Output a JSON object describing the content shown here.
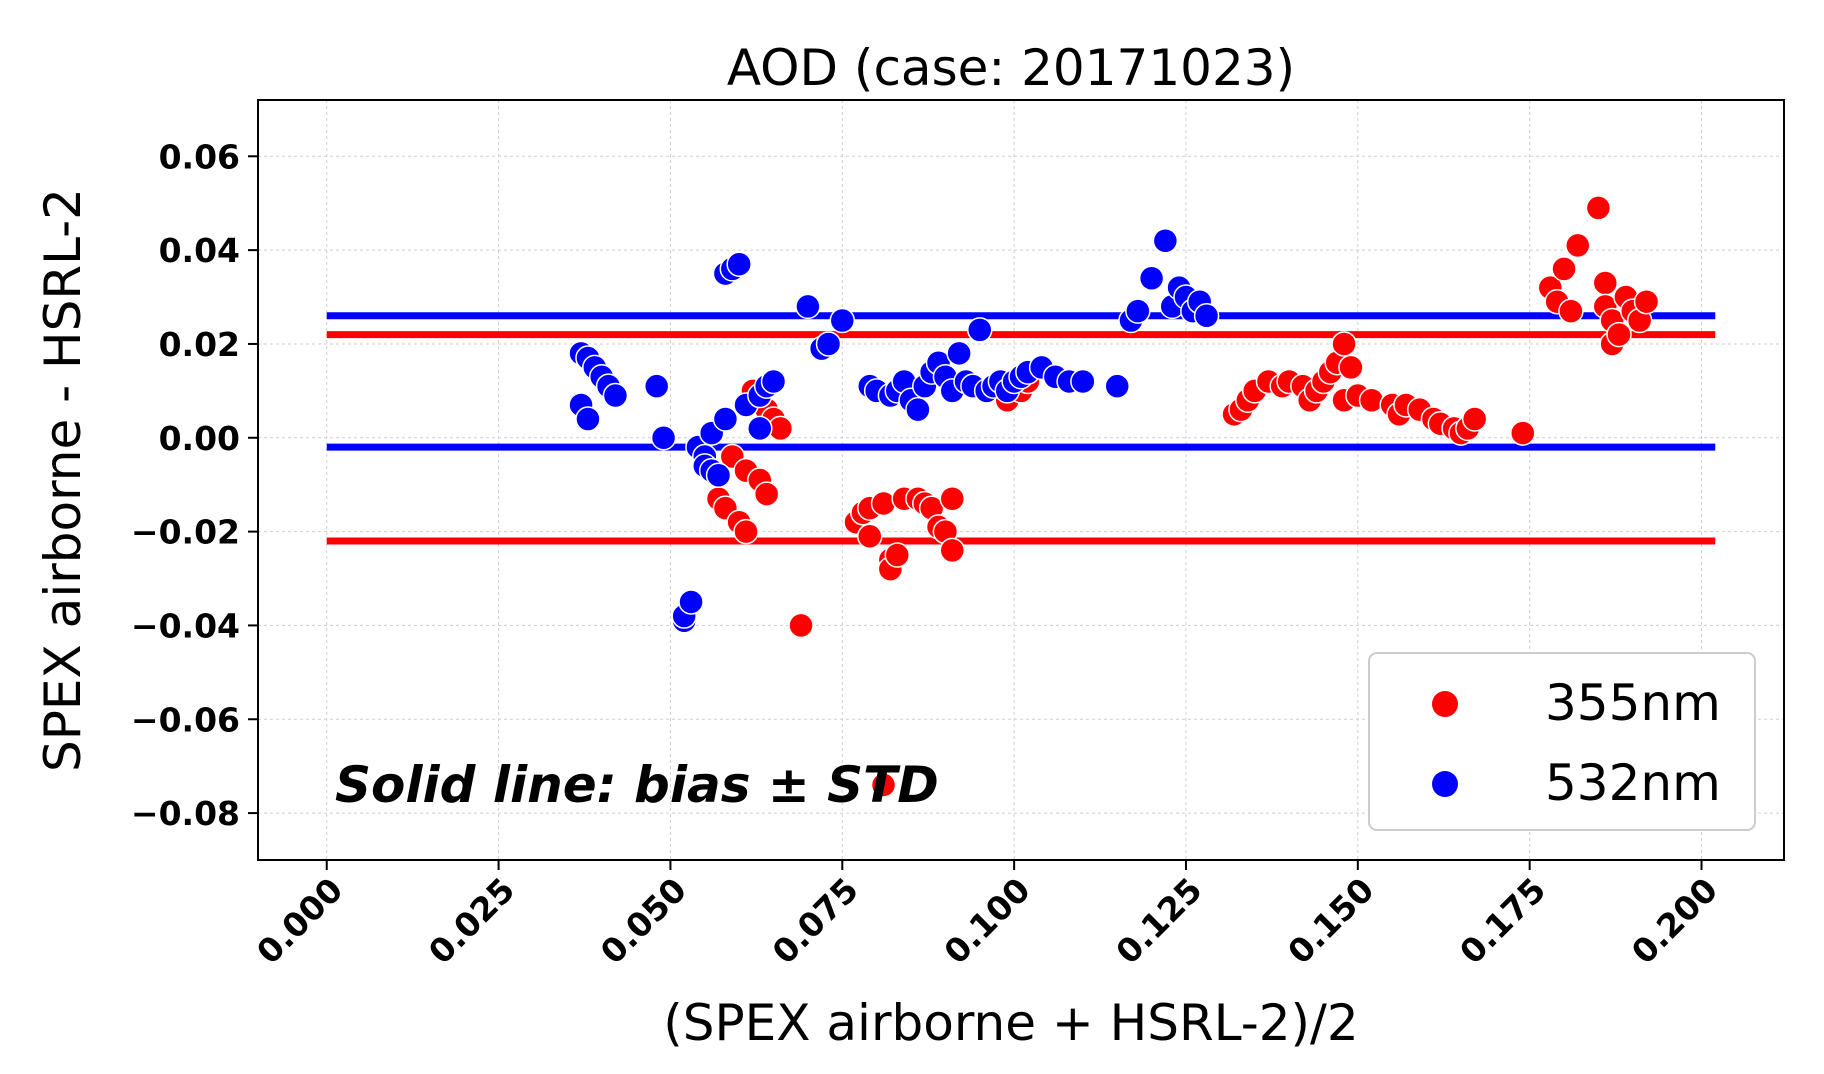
{
  "chart_data": {
    "type": "scatter",
    "title": "AOD (case: 20171023)",
    "xlabel": "(SPEX airborne + HSRL-2)/2",
    "ylabel": "SPEX airborne - HSRL-2",
    "xlim": [
      -0.01,
      0.212
    ],
    "ylim": [
      -0.09,
      0.072
    ],
    "grid": true,
    "xticks": [
      0.0,
      0.025,
      0.05,
      0.075,
      0.1,
      0.125,
      0.15,
      0.175,
      0.2
    ],
    "xtick_labels": [
      "0.000",
      "0.025",
      "0.050",
      "0.075",
      "0.100",
      "0.125",
      "0.150",
      "0.175",
      "0.200"
    ],
    "yticks": [
      0.06,
      0.04,
      0.02,
      0.0,
      -0.02,
      -0.04,
      -0.06,
      -0.08
    ],
    "ytick_labels": [
      "0.06",
      "0.04",
      "0.02",
      "0.00",
      "−0.02",
      "−0.04",
      "−0.06",
      "−0.08"
    ],
    "legend_position": "bottom-right",
    "annotation": "Solid line: bias ± STD",
    "series": [
      {
        "name": "355nm",
        "color": "#ff0000",
        "hlines": [
          0.022,
          -0.022
        ],
        "points": [
          [
            0.057,
            -0.013
          ],
          [
            0.058,
            -0.015
          ],
          [
            0.059,
            -0.004
          ],
          [
            0.06,
            -0.018
          ],
          [
            0.061,
            -0.02
          ],
          [
            0.061,
            -0.007
          ],
          [
            0.062,
            0.01
          ],
          [
            0.063,
            -0.009
          ],
          [
            0.064,
            -0.012
          ],
          [
            0.064,
            0.006
          ],
          [
            0.065,
            0.004
          ],
          [
            0.066,
            0.002
          ],
          [
            0.069,
            -0.04
          ],
          [
            0.077,
            -0.018
          ],
          [
            0.078,
            -0.016
          ],
          [
            0.079,
            -0.015
          ],
          [
            0.079,
            -0.021
          ],
          [
            0.081,
            -0.074
          ],
          [
            0.081,
            -0.014
          ],
          [
            0.082,
            -0.026
          ],
          [
            0.082,
            -0.028
          ],
          [
            0.083,
            -0.025
          ],
          [
            0.084,
            -0.013
          ],
          [
            0.086,
            -0.013
          ],
          [
            0.087,
            -0.014
          ],
          [
            0.088,
            -0.015
          ],
          [
            0.089,
            -0.019
          ],
          [
            0.09,
            -0.02
          ],
          [
            0.091,
            -0.013
          ],
          [
            0.091,
            -0.024
          ],
          [
            0.099,
            0.008
          ],
          [
            0.101,
            0.01
          ],
          [
            0.102,
            0.012
          ],
          [
            0.132,
            0.005
          ],
          [
            0.133,
            0.006
          ],
          [
            0.134,
            0.008
          ],
          [
            0.135,
            0.01
          ],
          [
            0.137,
            0.012
          ],
          [
            0.139,
            0.011
          ],
          [
            0.14,
            0.012
          ],
          [
            0.142,
            0.011
          ],
          [
            0.143,
            0.008
          ],
          [
            0.144,
            0.01
          ],
          [
            0.145,
            0.012
          ],
          [
            0.146,
            0.014
          ],
          [
            0.147,
            0.016
          ],
          [
            0.148,
            0.02
          ],
          [
            0.148,
            0.008
          ],
          [
            0.149,
            0.015
          ],
          [
            0.15,
            0.009
          ],
          [
            0.152,
            0.008
          ],
          [
            0.155,
            0.007
          ],
          [
            0.156,
            0.005
          ],
          [
            0.157,
            0.007
          ],
          [
            0.159,
            0.006
          ],
          [
            0.161,
            0.004
          ],
          [
            0.162,
            0.003
          ],
          [
            0.164,
            0.002
          ],
          [
            0.165,
            0.001
          ],
          [
            0.166,
            0.002
          ],
          [
            0.167,
            0.004
          ],
          [
            0.174,
            0.001
          ],
          [
            0.178,
            0.032
          ],
          [
            0.179,
            0.029
          ],
          [
            0.18,
            0.036
          ],
          [
            0.181,
            0.027
          ],
          [
            0.182,
            0.041
          ],
          [
            0.185,
            0.049
          ],
          [
            0.186,
            0.033
          ],
          [
            0.186,
            0.028
          ],
          [
            0.187,
            0.025
          ],
          [
            0.187,
            0.02
          ],
          [
            0.188,
            0.022
          ],
          [
            0.189,
            0.03
          ],
          [
            0.19,
            0.027
          ],
          [
            0.191,
            0.025
          ],
          [
            0.192,
            0.029
          ]
        ]
      },
      {
        "name": "532nm",
        "color": "#0000ff",
        "hlines": [
          0.026,
          -0.002
        ],
        "points": [
          [
            0.037,
            0.007
          ],
          [
            0.037,
            0.018
          ],
          [
            0.038,
            0.017
          ],
          [
            0.038,
            0.004
          ],
          [
            0.039,
            0.015
          ],
          [
            0.04,
            0.013
          ],
          [
            0.041,
            0.011
          ],
          [
            0.042,
            0.009
          ],
          [
            0.048,
            0.011
          ],
          [
            0.049,
            0.0
          ],
          [
            0.052,
            -0.039
          ],
          [
            0.052,
            -0.038
          ],
          [
            0.053,
            -0.035
          ],
          [
            0.054,
            -0.002
          ],
          [
            0.055,
            -0.004
          ],
          [
            0.055,
            -0.006
          ],
          [
            0.056,
            0.001
          ],
          [
            0.056,
            -0.007
          ],
          [
            0.057,
            -0.008
          ],
          [
            0.058,
            0.004
          ],
          [
            0.058,
            0.035
          ],
          [
            0.059,
            0.036
          ],
          [
            0.06,
            0.037
          ],
          [
            0.061,
            0.007
          ],
          [
            0.063,
            0.002
          ],
          [
            0.063,
            0.009
          ],
          [
            0.064,
            0.011
          ],
          [
            0.065,
            0.012
          ],
          [
            0.07,
            0.028
          ],
          [
            0.072,
            0.019
          ],
          [
            0.073,
            0.02
          ],
          [
            0.075,
            0.025
          ],
          [
            0.079,
            0.011
          ],
          [
            0.08,
            0.01
          ],
          [
            0.082,
            0.009
          ],
          [
            0.083,
            0.01
          ],
          [
            0.084,
            0.012
          ],
          [
            0.085,
            0.008
          ],
          [
            0.086,
            0.006
          ],
          [
            0.087,
            0.011
          ],
          [
            0.088,
            0.014
          ],
          [
            0.089,
            0.016
          ],
          [
            0.09,
            0.013
          ],
          [
            0.091,
            0.01
          ],
          [
            0.092,
            0.018
          ],
          [
            0.093,
            0.012
          ],
          [
            0.094,
            0.011
          ],
          [
            0.095,
            0.023
          ],
          [
            0.096,
            0.01
          ],
          [
            0.097,
            0.011
          ],
          [
            0.098,
            0.012
          ],
          [
            0.099,
            0.01
          ],
          [
            0.1,
            0.012
          ],
          [
            0.101,
            0.013
          ],
          [
            0.102,
            0.014
          ],
          [
            0.104,
            0.015
          ],
          [
            0.106,
            0.013
          ],
          [
            0.108,
            0.012
          ],
          [
            0.11,
            0.012
          ],
          [
            0.115,
            0.011
          ],
          [
            0.117,
            0.025
          ],
          [
            0.118,
            0.027
          ],
          [
            0.12,
            0.034
          ],
          [
            0.122,
            0.042
          ],
          [
            0.123,
            0.028
          ],
          [
            0.124,
            0.032
          ],
          [
            0.125,
            0.03
          ],
          [
            0.126,
            0.027
          ],
          [
            0.127,
            0.029
          ],
          [
            0.128,
            0.026
          ]
        ]
      }
    ]
  }
}
